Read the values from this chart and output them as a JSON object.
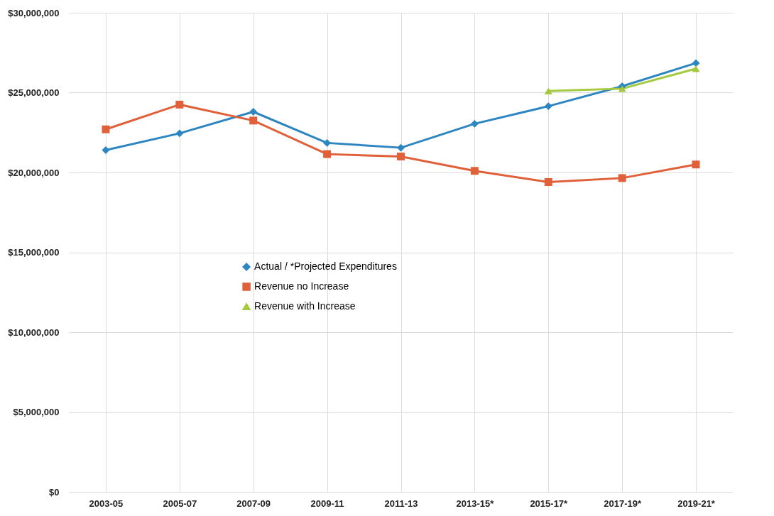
{
  "chart_data": {
    "type": "line",
    "categories": [
      "2003-05",
      "2005-07",
      "2007-09",
      "2009-11",
      "2011-13",
      "2013-15*",
      "2015-17*",
      "2017-19*",
      "2019-21*"
    ],
    "series": [
      {
        "name": "Actual / *Projected Expenditures",
        "color": "#2e86c1",
        "marker": "diamond",
        "values": [
          21400000,
          22450000,
          23800000,
          21850000,
          21550000,
          23050000,
          24150000,
          25400000,
          26850000
        ]
      },
      {
        "name": "Revenue no Increase",
        "color": "#e0603a",
        "marker": "square",
        "values": [
          22700000,
          24250000,
          23250000,
          21150000,
          21000000,
          20100000,
          19400000,
          19650000,
          20500000
        ]
      },
      {
        "name": "Revenue with Increase",
        "color": "#a4c93c",
        "marker": "triangle",
        "values": [
          null,
          null,
          null,
          null,
          null,
          null,
          25100000,
          25250000,
          26500000
        ]
      }
    ],
    "ylim": [
      0,
      30000000
    ],
    "yticks": [
      {
        "value": 0,
        "label": "$0"
      },
      {
        "value": 5000000,
        "label": "$5,000,000"
      },
      {
        "value": 10000000,
        "label": "$10,000,000"
      },
      {
        "value": 15000000,
        "label": "$15,000,000"
      },
      {
        "value": 20000000,
        "label": "$20,000,000"
      },
      {
        "value": 25000000,
        "label": "$25,000,000"
      },
      {
        "value": 30000000,
        "label": "$30,000,000"
      }
    ],
    "grid": true,
    "legend": "center"
  }
}
